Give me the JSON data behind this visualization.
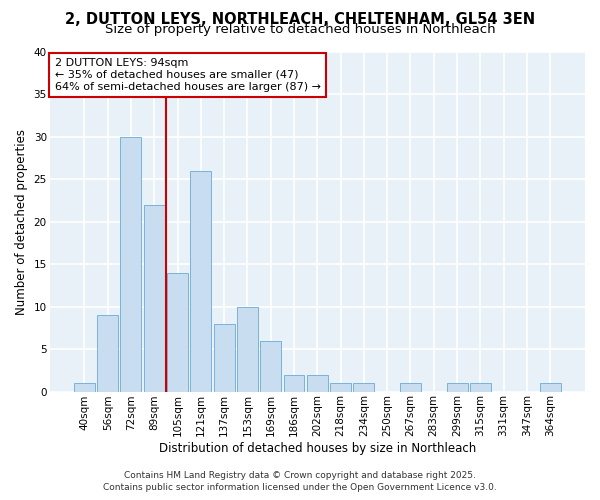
{
  "title_line1": "2, DUTTON LEYS, NORTHLEACH, CHELTENHAM, GL54 3EN",
  "title_line2": "Size of property relative to detached houses in Northleach",
  "xlabel": "Distribution of detached houses by size in Northleach",
  "ylabel": "Number of detached properties",
  "bar_labels": [
    "40sqm",
    "56sqm",
    "72sqm",
    "89sqm",
    "105sqm",
    "121sqm",
    "137sqm",
    "153sqm",
    "169sqm",
    "186sqm",
    "202sqm",
    "218sqm",
    "234sqm",
    "250sqm",
    "267sqm",
    "283sqm",
    "299sqm",
    "315sqm",
    "331sqm",
    "347sqm",
    "364sqm"
  ],
  "bar_values": [
    1,
    9,
    30,
    22,
    14,
    26,
    8,
    10,
    6,
    2,
    2,
    1,
    1,
    0,
    1,
    0,
    1,
    1,
    0,
    0,
    1
  ],
  "bar_color": "#c9ddf0",
  "bar_edge_color": "#6aaad4",
  "fig_background": "#ffffff",
  "ax_background": "#e8f0f8",
  "grid_color": "#ffffff",
  "annotation_line1": "2 DUTTON LEYS: 94sqm",
  "annotation_line2": "← 35% of detached houses are smaller (47)",
  "annotation_line3": "64% of semi-detached houses are larger (87) →",
  "annotation_box_facecolor": "#ffffff",
  "annotation_box_edgecolor": "#cc0000",
  "vline_color": "#cc0000",
  "vline_x": 3.5,
  "ylim": [
    0,
    40
  ],
  "yticks": [
    0,
    5,
    10,
    15,
    20,
    25,
    30,
    35,
    40
  ],
  "footer_line1": "Contains HM Land Registry data © Crown copyright and database right 2025.",
  "footer_line2": "Contains public sector information licensed under the Open Government Licence v3.0.",
  "title_fontsize": 10.5,
  "subtitle_fontsize": 9.5,
  "axis_label_fontsize": 8.5,
  "tick_fontsize": 7.5,
  "annotation_fontsize": 8,
  "footer_fontsize": 6.5
}
